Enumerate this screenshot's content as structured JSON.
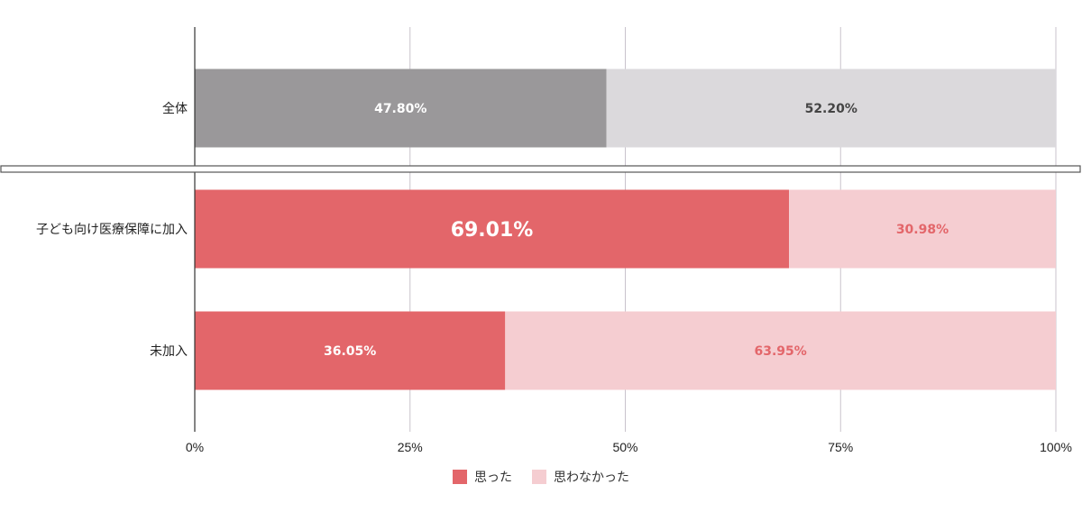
{
  "chart_data": {
    "type": "bar",
    "orientation": "horizontal",
    "stacked": true,
    "categories": [
      "全体",
      "子ども向け医療保障に加入",
      "未加入"
    ],
    "series": [
      {
        "name": "思った",
        "values": [
          47.8,
          69.01,
          36.05
        ],
        "labels": [
          "47.80%",
          "69.01%",
          "36.05%"
        ]
      },
      {
        "name": "思わなかった",
        "values": [
          52.2,
          30.98,
          63.95
        ],
        "labels": [
          "52.20%",
          "30.98%",
          "63.95%"
        ]
      }
    ],
    "xlim": [
      0,
      100
    ],
    "x_ticks": [
      "0%",
      "25%",
      "50%",
      "75%",
      "100%"
    ],
    "grid": true,
    "legend_position": "bottom",
    "axis_break_after_category": "全体",
    "colors": {
      "total_yes": "#9a989a",
      "total_no": "#dbd9dc",
      "yes": "#e3666a",
      "no": "#f5cdd1",
      "total_yes_label": "#ffffff",
      "total_no_label": "#444444",
      "yes_label": "#ffffff",
      "no_label": "#e3666a",
      "grid": "#c9c3cc",
      "axis": "#333333"
    }
  }
}
